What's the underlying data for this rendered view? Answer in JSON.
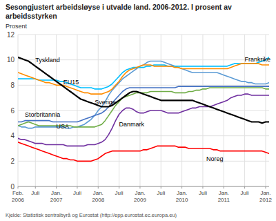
{
  "chart_data": {
    "type": "line",
    "title": "Sesongjustert arbeidsløyse i utvalde land. 2006-2012. I prosent av\narbeidsstyrken",
    "y_label": "Prosent",
    "source": "Kjelde: Statistisk sentralbyrå og Eurostat (http://epp.eurostat.ec.europa.eu)",
    "categories": [
      "Feb.\n2006",
      null,
      null,
      null,
      null,
      "Juli",
      null,
      null,
      null,
      null,
      null,
      "Jan.\n2007",
      null,
      null,
      null,
      null,
      null,
      "Juli",
      null,
      null,
      null,
      null,
      null,
      "Jan.\n2008",
      null,
      null,
      null,
      null,
      null,
      "Juli",
      null,
      null,
      null,
      null,
      null,
      "Jan.\n2009",
      null,
      null,
      null,
      null,
      null,
      "Juli",
      null,
      null,
      null,
      null,
      null,
      "Jan.\n2010",
      null,
      null,
      null,
      null,
      null,
      "Juli",
      null,
      null,
      null,
      null,
      null,
      "Jan.\n2011",
      null,
      null,
      null,
      null,
      null,
      "Juli",
      null,
      null,
      null,
      null,
      null,
      "Jan.\n2012",
      null
    ],
    "ylim": [
      0,
      12
    ],
    "yticks": [
      0,
      2,
      4,
      6,
      8,
      10,
      12
    ],
    "grid": true,
    "series": [
      {
        "name": "Tyskland",
        "color": "#000000",
        "values": [
          10.2,
          10.1,
          10.0,
          9.9,
          9.7,
          9.5,
          9.3,
          9.1,
          8.9,
          8.7,
          8.5,
          8.3,
          8.1,
          7.9,
          7.7,
          7.5,
          7.3,
          7.1,
          6.9,
          6.8,
          6.7,
          6.6,
          6.5,
          6.4,
          6.3,
          6.3,
          6.3,
          6.4,
          6.6,
          6.8,
          7.0,
          7.2,
          7.4,
          7.5,
          7.5,
          7.4,
          7.3,
          7.2,
          7.1,
          7.0,
          6.9,
          6.8,
          6.8,
          6.8,
          6.8,
          6.8,
          6.8,
          6.8,
          6.8,
          6.8,
          6.8,
          6.7,
          6.6,
          6.5,
          6.4,
          6.3,
          6.2,
          6.1,
          6.0,
          5.9,
          5.8,
          5.7,
          5.6,
          5.5,
          5.4,
          5.3,
          5.2,
          5.1,
          5.1,
          5.1,
          5.0,
          5.1,
          5.1
        ]
      },
      {
        "name": "EU15",
        "color": "#FF8C00",
        "values": [
          9.0,
          8.9,
          8.8,
          8.7,
          8.6,
          8.5,
          8.4,
          8.3,
          8.2,
          8.2,
          8.1,
          8.0,
          8.0,
          8.0,
          7.9,
          7.8,
          7.7,
          7.6,
          7.5,
          7.4,
          7.4,
          7.3,
          7.3,
          7.3,
          7.3,
          7.4,
          7.5,
          7.7,
          8.0,
          8.3,
          8.7,
          9.0,
          9.2,
          9.3,
          9.4,
          9.5,
          9.6,
          9.6,
          9.6,
          9.5,
          9.5,
          9.5,
          9.5,
          9.5,
          9.5,
          9.4,
          9.4,
          9.3,
          9.3,
          9.3,
          9.3,
          9.3,
          9.3,
          9.3,
          9.3,
          9.3,
          9.3,
          9.3,
          9.3,
          9.3,
          9.3,
          9.4,
          9.5,
          9.6,
          9.7,
          9.7,
          9.7,
          9.7,
          9.7,
          9.7,
          9.6,
          9.6,
          9.6
        ]
      },
      {
        "name": "Frankrike",
        "color": "#00BFFF",
        "values": [
          8.5,
          8.5,
          8.5,
          8.5,
          8.5,
          8.5,
          8.4,
          8.4,
          8.4,
          8.4,
          8.4,
          8.4,
          8.3,
          8.3,
          8.2,
          8.1,
          8.0,
          7.9,
          7.8,
          7.8,
          7.8,
          7.8,
          7.7,
          7.7,
          7.7,
          7.8,
          7.9,
          8.1,
          8.4,
          8.7,
          9.0,
          9.2,
          9.3,
          9.4,
          9.4,
          9.4,
          9.4,
          9.5,
          9.5,
          9.6,
          9.6,
          9.6,
          9.6,
          9.5,
          9.5,
          9.5,
          9.5,
          9.5,
          9.5,
          9.5,
          9.5,
          9.5,
          9.5,
          9.5,
          9.5,
          9.5,
          9.5,
          9.5,
          9.5,
          9.5,
          9.5,
          9.6,
          9.7,
          9.7,
          9.7,
          9.7,
          9.7,
          9.7,
          9.7,
          9.8,
          9.9,
          10.0,
          10.2
        ]
      },
      {
        "name": "Storbritannia",
        "color": "#4472C4",
        "values": [
          5.1,
          5.1,
          5.2,
          5.2,
          5.2,
          5.2,
          5.2,
          5.2,
          5.2,
          5.2,
          5.1,
          5.1,
          5.1,
          5.1,
          5.1,
          5.1,
          5.1,
          5.1,
          5.2,
          5.3,
          5.4,
          5.5,
          5.6,
          5.7,
          5.8,
          6.0,
          6.3,
          6.6,
          6.9,
          7.2,
          7.5,
          7.7,
          7.8,
          7.8,
          7.8,
          7.8,
          7.8,
          7.8,
          7.8,
          7.8,
          7.8,
          7.8,
          7.8,
          7.8,
          7.8,
          7.8,
          7.9,
          7.9,
          7.9,
          7.9,
          7.9,
          7.9,
          7.9,
          7.9,
          7.9,
          7.9,
          7.9,
          7.9,
          7.9,
          7.9,
          7.9,
          7.9,
          7.9,
          7.9,
          7.9,
          7.9,
          7.9,
          7.9,
          7.9,
          7.9,
          7.9,
          7.9,
          7.9
        ]
      },
      {
        "name": "Sverige",
        "color": "#70AD47",
        "values": [
          4.8,
          4.9,
          5.0,
          5.1,
          5.0,
          4.9,
          4.8,
          4.8,
          4.8,
          4.8,
          4.8,
          4.8,
          4.8,
          4.8,
          4.8,
          4.8,
          4.7,
          4.7,
          4.7,
          4.7,
          4.7,
          4.7,
          4.7,
          4.8,
          4.9,
          5.2,
          5.6,
          6.0,
          6.4,
          6.7,
          7.0,
          7.1,
          7.2,
          7.3,
          7.4,
          7.4,
          7.4,
          7.4,
          7.5,
          7.5,
          7.5,
          7.5,
          7.5,
          7.5,
          7.5,
          7.4,
          7.4,
          7.4,
          7.4,
          7.5,
          7.5,
          7.6,
          7.6,
          7.7,
          7.7,
          7.8,
          7.8,
          7.8,
          7.8,
          7.8,
          7.8,
          7.8,
          7.8,
          7.8,
          7.8,
          7.8,
          7.8,
          7.8,
          7.8,
          7.8,
          7.8,
          7.7,
          7.7
        ]
      },
      {
        "name": "USA",
        "color": "#5B9BD5",
        "values": [
          4.8,
          4.7,
          4.7,
          4.6,
          4.6,
          4.7,
          4.7,
          4.7,
          4.7,
          4.7,
          4.7,
          4.7,
          4.7,
          4.7,
          4.6,
          4.6,
          4.7,
          4.7,
          4.8,
          4.9,
          5.1,
          5.3,
          5.6,
          6.0,
          6.3,
          6.7,
          7.2,
          7.6,
          7.9,
          8.2,
          8.5,
          8.7,
          8.9,
          9.1,
          9.3,
          9.5,
          9.6,
          9.8,
          9.9,
          9.9,
          9.9,
          9.9,
          9.8,
          9.7,
          9.6,
          9.5,
          9.4,
          9.3,
          9.2,
          9.1,
          9.0,
          9.0,
          9.0,
          9.0,
          9.0,
          9.0,
          9.0,
          9.0,
          8.9,
          8.8,
          8.7,
          8.6,
          8.5,
          8.4,
          8.3,
          8.3,
          8.2,
          8.2,
          8.1,
          8.1,
          8.1,
          8.1,
          8.2
        ]
      },
      {
        "name": "Danmark",
        "color": "#7030A0",
        "values": [
          3.8,
          3.7,
          3.7,
          3.6,
          3.5,
          3.4,
          3.4,
          3.4,
          3.3,
          3.3,
          3.3,
          3.3,
          3.3,
          3.3,
          3.2,
          3.2,
          3.2,
          3.2,
          3.2,
          3.2,
          3.3,
          3.3,
          3.3,
          3.4,
          3.5,
          3.7,
          4.1,
          4.6,
          5.2,
          5.7,
          6.0,
          6.2,
          6.2,
          6.1,
          5.9,
          5.8,
          5.8,
          5.9,
          6.0,
          6.0,
          6.0,
          6.0,
          5.9,
          5.8,
          5.8,
          5.8,
          5.8,
          5.9,
          6.0,
          6.1,
          6.2,
          6.2,
          6.3,
          6.3,
          6.3,
          6.3,
          6.4,
          6.5,
          6.6,
          6.7,
          6.8,
          7.0,
          7.1,
          7.2,
          7.2,
          7.3,
          7.3,
          7.2,
          7.2,
          7.2,
          7.2,
          7.2,
          7.2
        ]
      },
      {
        "name": "Noreg",
        "color": "#FF0000",
        "values": [
          3.5,
          3.4,
          3.3,
          3.2,
          3.1,
          3.0,
          2.9,
          2.8,
          2.7,
          2.6,
          2.5,
          2.4,
          2.3,
          2.2,
          2.2,
          2.1,
          2.1,
          2.0,
          2.0,
          2.0,
          2.0,
          2.0,
          2.1,
          2.2,
          2.4,
          2.6,
          2.7,
          2.8,
          2.8,
          2.8,
          2.8,
          2.8,
          2.8,
          2.8,
          2.8,
          2.8,
          2.9,
          2.9,
          3.0,
          3.1,
          3.2,
          3.2,
          3.2,
          3.2,
          3.2,
          3.2,
          3.1,
          3.1,
          3.1,
          3.0,
          3.0,
          3.0,
          3.0,
          3.0,
          3.0,
          3.0,
          2.9,
          2.9,
          2.8,
          2.8,
          2.8,
          2.8,
          2.8,
          2.8,
          2.8,
          2.8,
          2.8,
          2.8,
          2.8,
          2.8,
          2.8,
          2.7,
          2.6
        ]
      }
    ],
    "annotations": [
      {
        "text": "Tyskland",
        "x": 5,
        "y": 10.0
      },
      {
        "text": "EU15",
        "x": 13,
        "y": 8.25
      },
      {
        "text": "Frankrike",
        "x": 65,
        "y": 10.05
      },
      {
        "text": "Storbritannia",
        "x": 2,
        "y": 5.7
      },
      {
        "text": "Sverige",
        "x": 22,
        "y": 6.65
      },
      {
        "text": "USA",
        "x": 11,
        "y": 4.75
      },
      {
        "text": "Danmark",
        "x": 29,
        "y": 4.9
      },
      {
        "text": "Noreg",
        "x": 54,
        "y": 2.2
      }
    ]
  }
}
